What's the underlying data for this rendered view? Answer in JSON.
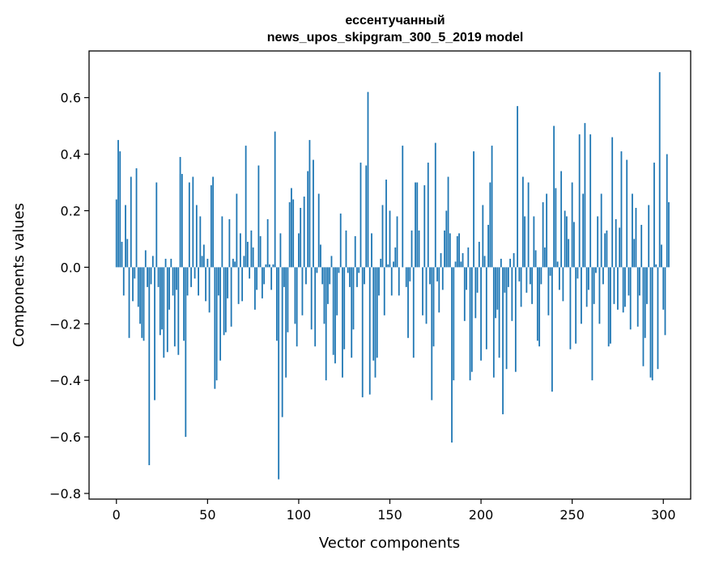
{
  "chart_data": {
    "type": "bar",
    "title_lines": [
      "ессентучанный",
      "news_upos_skipgram_300_5_2019 model"
    ],
    "xlabel": "Vector components",
    "ylabel": "Components values",
    "xlim": [
      -15,
      315
    ],
    "ylim": [
      -0.82,
      0.765
    ],
    "xticks": [
      0,
      50,
      100,
      150,
      200,
      250,
      300
    ],
    "xtick_labels": [
      "0",
      "50",
      "100",
      "150",
      "200",
      "250",
      "300"
    ],
    "yticks": [
      -0.8,
      -0.6,
      -0.4,
      -0.2,
      0.0,
      0.2,
      0.4,
      0.6
    ],
    "ytick_labels": [
      "−0.8",
      "−0.6",
      "−0.4",
      "−0.2",
      "0.0",
      "0.2",
      "0.4",
      "0.6"
    ],
    "bar_color": "#1f77b4",
    "bar_width": 0.8,
    "values": [
      0.24,
      0.45,
      0.41,
      0.09,
      -0.1,
      0.22,
      0.1,
      -0.25,
      0.32,
      -0.12,
      -0.04,
      0.35,
      -0.14,
      -0.2,
      -0.25,
      -0.26,
      0.06,
      -0.07,
      -0.7,
      -0.06,
      0.04,
      -0.47,
      0.3,
      -0.07,
      -0.24,
      -0.22,
      -0.32,
      0.03,
      -0.3,
      -0.15,
      0.03,
      -0.1,
      -0.28,
      -0.08,
      -0.31,
      0.39,
      0.33,
      -0.26,
      -0.6,
      -0.1,
      0.3,
      -0.07,
      0.32,
      -0.04,
      0.22,
      -0.1,
      0.18,
      0.04,
      0.08,
      -0.12,
      0.03,
      -0.16,
      0.29,
      0.32,
      -0.43,
      -0.4,
      -0.1,
      -0.33,
      0.18,
      -0.24,
      -0.23,
      -0.11,
      0.17,
      -0.21,
      0.03,
      0.02,
      0.26,
      -0.13,
      0.12,
      -0.12,
      0.04,
      0.43,
      0.09,
      -0.04,
      0.13,
      0.07,
      -0.15,
      -0.08,
      0.36,
      0.11,
      -0.11,
      -0.06,
      0.01,
      0.17,
      0.01,
      -0.08,
      0.01,
      0.48,
      -0.26,
      -0.75,
      0.12,
      -0.53,
      -0.07,
      -0.39,
      -0.23,
      0.23,
      0.28,
      0.24,
      -0.2,
      -0.28,
      0.12,
      0.21,
      -0.17,
      0.25,
      -0.06,
      0.34,
      0.45,
      -0.22,
      0.38,
      -0.28,
      -0.02,
      0.26,
      0.08,
      -0.06,
      -0.2,
      -0.4,
      -0.13,
      -0.06,
      0.04,
      -0.31,
      -0.34,
      -0.17,
      -0.02,
      0.19,
      -0.39,
      -0.29,
      0.13,
      -0.02,
      -0.07,
      -0.32,
      -0.22,
      0.11,
      -0.07,
      -0.02,
      0.37,
      -0.46,
      -0.06,
      0.36,
      0.62,
      -0.45,
      0.12,
      -0.33,
      -0.39,
      -0.32,
      -0.1,
      0.03,
      0.22,
      -0.17,
      0.31,
      0.01,
      0.2,
      -0.1,
      0.02,
      0.07,
      0.18,
      -0.1,
      0.0,
      0.43,
      0.0,
      -0.07,
      -0.25,
      -0.05,
      0.13,
      -0.32,
      0.3,
      0.3,
      0.13,
      0.0,
      -0.17,
      0.29,
      -0.2,
      0.37,
      -0.06,
      -0.47,
      -0.28,
      0.44,
      -0.05,
      -0.16,
      0.05,
      -0.08,
      0.13,
      0.2,
      0.32,
      0.12,
      -0.62,
      -0.4,
      0.02,
      0.11,
      0.12,
      0.02,
      0.05,
      -0.19,
      -0.08,
      0.07,
      -0.4,
      -0.37,
      0.41,
      -0.18,
      -0.09,
      0.09,
      -0.33,
      0.22,
      0.04,
      -0.29,
      0.15,
      0.3,
      0.43,
      -0.39,
      -0.18,
      -0.15,
      -0.32,
      0.03,
      -0.52,
      -0.09,
      -0.36,
      -0.07,
      0.03,
      -0.19,
      0.05,
      -0.37,
      0.57,
      -0.05,
      -0.14,
      0.32,
      0.18,
      -0.09,
      0.3,
      -0.06,
      -0.13,
      0.18,
      0.06,
      -0.26,
      -0.28,
      -0.06,
      0.23,
      0.07,
      0.26,
      -0.17,
      -0.03,
      -0.44,
      0.5,
      0.28,
      0.02,
      -0.08,
      0.34,
      -0.12,
      0.2,
      0.18,
      0.1,
      -0.29,
      0.3,
      0.16,
      -0.27,
      -0.04,
      0.47,
      -0.2,
      0.26,
      0.51,
      -0.14,
      -0.08,
      0.47,
      -0.4,
      -0.13,
      -0.02,
      0.18,
      -0.2,
      0.26,
      -0.06,
      0.12,
      0.13,
      -0.28,
      -0.27,
      0.46,
      -0.13,
      0.17,
      -0.15,
      0.14,
      0.41,
      -0.16,
      -0.14,
      0.38,
      -0.1,
      -0.22,
      0.26,
      0.1,
      0.21,
      -0.21,
      -0.1,
      0.15,
      -0.35,
      -0.25,
      -0.13,
      0.22,
      -0.39,
      -0.4,
      0.37,
      0.01,
      -0.36,
      0.69,
      0.08,
      -0.15,
      -0.24,
      0.4,
      0.23
    ]
  }
}
